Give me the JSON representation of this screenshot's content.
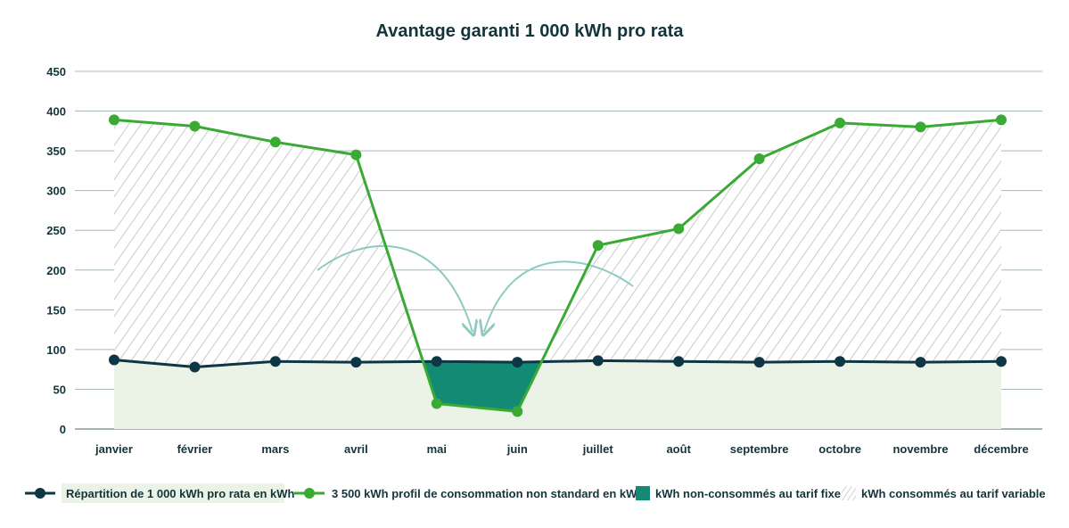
{
  "chart_data": {
    "type": "line",
    "title": "Avantage garanti 1 000 kWh pro rata",
    "categories": [
      "janvier",
      "février",
      "mars",
      "avril",
      "mai",
      "juin",
      "juillet",
      "août",
      "septembre",
      "octobre",
      "novembre",
      "décembre"
    ],
    "ylim": [
      0,
      450
    ],
    "yticks": [
      0,
      50,
      100,
      150,
      200,
      250,
      300,
      350,
      400,
      450
    ],
    "grid": true,
    "legend_position": "bottom",
    "series": [
      {
        "name": "Répartition de 1 000 kWh pro rata en kWh",
        "color": "#0f3645",
        "values": [
          87,
          78,
          85,
          84,
          85,
          84,
          86,
          85,
          84,
          85,
          84,
          85
        ]
      },
      {
        "name": "3 500 kWh profil de consommation non standard en kWh",
        "color": "#3aaa35",
        "values": [
          389,
          381,
          361,
          345,
          32,
          22,
          231,
          252,
          340,
          385,
          380,
          389
        ]
      }
    ],
    "areas": [
      {
        "name": "kWh non-consommés au tarif fixe",
        "color": "#138a74"
      },
      {
        "name": "kWh consommés au tarif variable",
        "color": "#b0b5ba"
      }
    ],
    "base_fill_color": "#eaf3e6",
    "arrow_color": "#8dcbc0"
  }
}
